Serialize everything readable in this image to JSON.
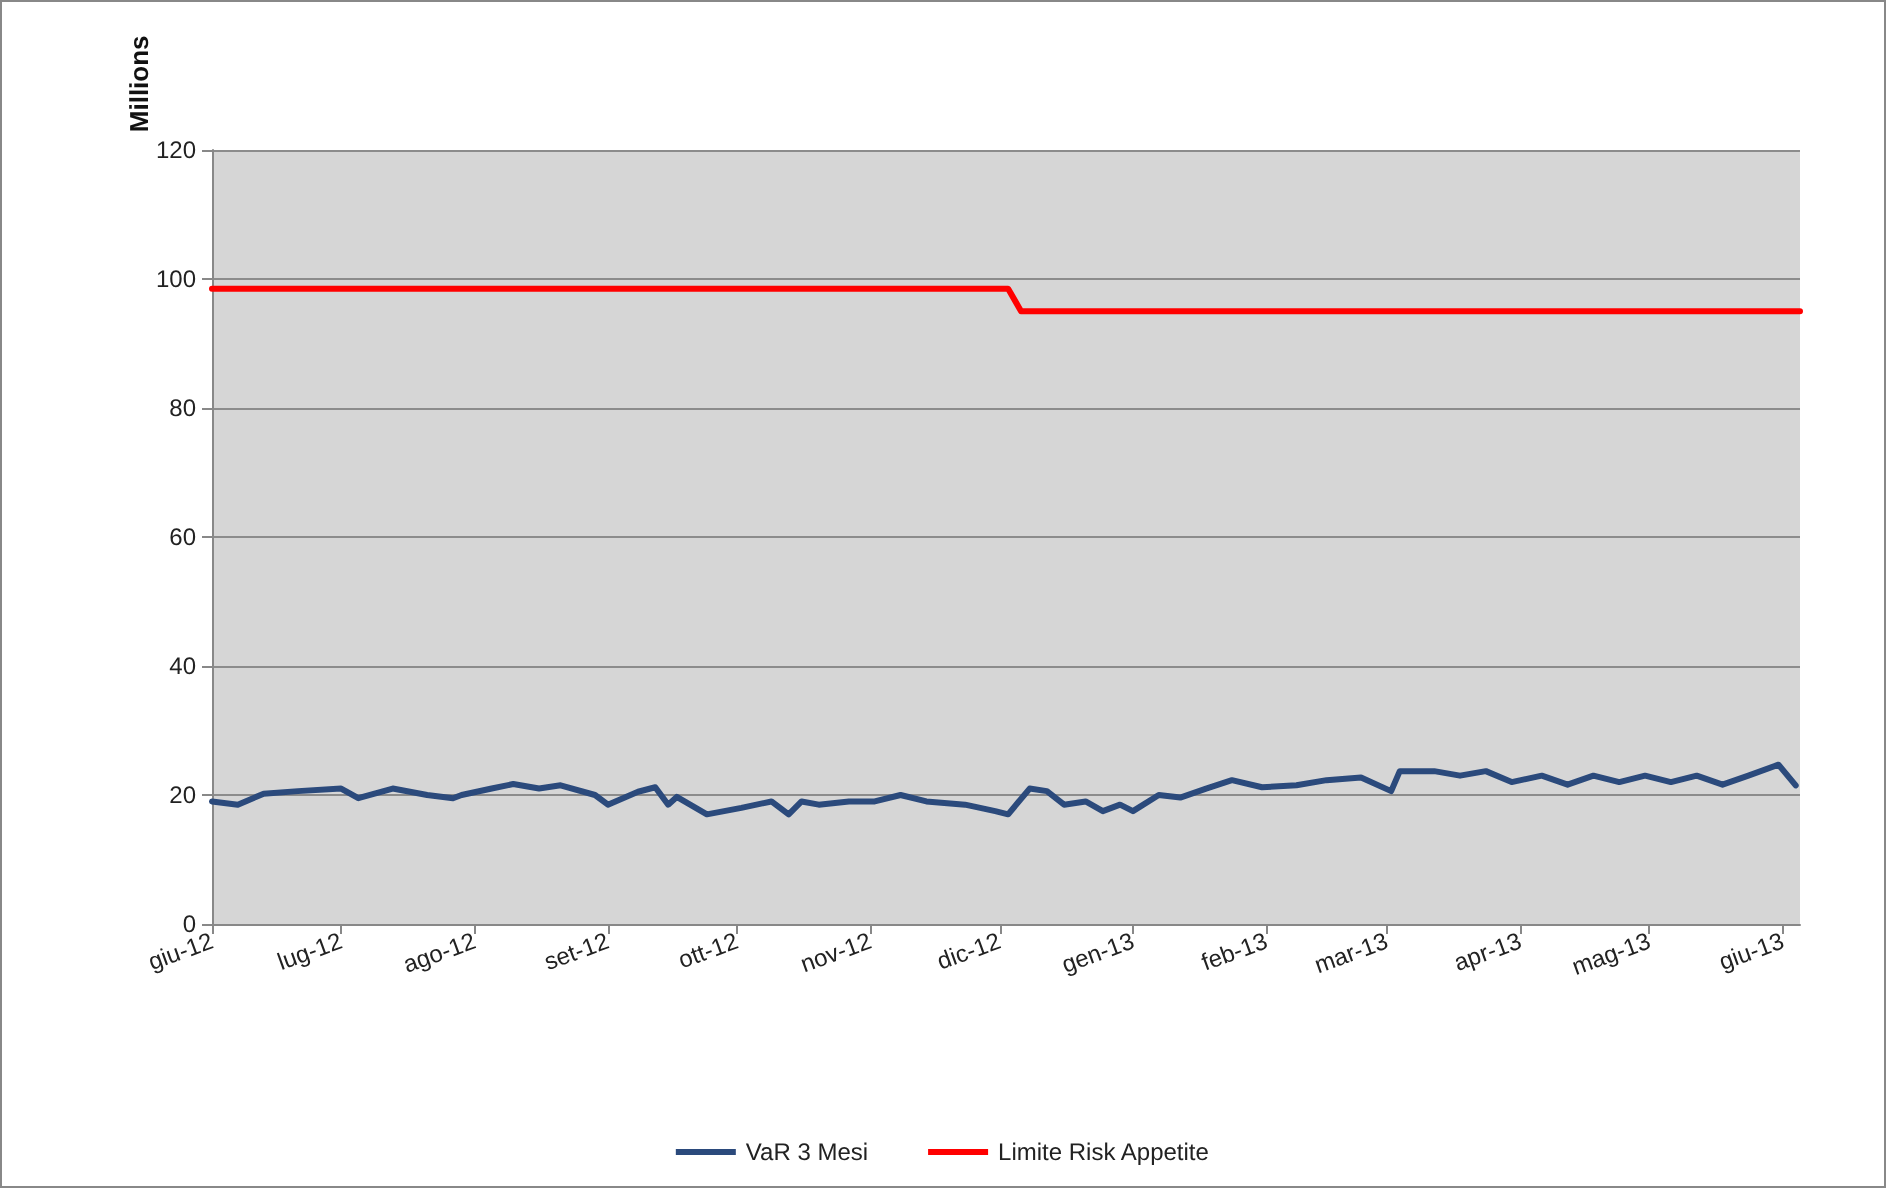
{
  "chart_data": {
    "type": "line",
    "ylabel": "Millions",
    "xlim": [
      "2012-06-01",
      "2013-06-05"
    ],
    "ylim": [
      0,
      120
    ],
    "yticks": [
      0,
      20,
      40,
      60,
      80,
      100,
      120
    ],
    "xticks": [
      {
        "value": "2012-06-01",
        "label": "giu-12"
      },
      {
        "value": "2012-07-01",
        "label": "lug-12"
      },
      {
        "value": "2012-08-01",
        "label": "ago-12"
      },
      {
        "value": "2012-09-01",
        "label": "set-12"
      },
      {
        "value": "2012-10-01",
        "label": "ott-12"
      },
      {
        "value": "2012-11-01",
        "label": "nov-12"
      },
      {
        "value": "2012-12-01",
        "label": "dic-12"
      },
      {
        "value": "2013-01-01",
        "label": "gen-13"
      },
      {
        "value": "2013-02-01",
        "label": "feb-13"
      },
      {
        "value": "2013-03-01",
        "label": "mar-13"
      },
      {
        "value": "2013-04-01",
        "label": "apr-13"
      },
      {
        "value": "2013-05-01",
        "label": "mag-13"
      },
      {
        "value": "2013-06-01",
        "label": "giu-13"
      }
    ],
    "grid": "y",
    "legend": "bottom",
    "marker": "none",
    "line_style": "solid",
    "series": [
      {
        "name": "VaR 3 Mesi",
        "color": "#2b4a7c",
        "x": [
          "2012-06-01",
          "2012-06-07",
          "2012-06-13",
          "2012-06-21",
          "2012-07-01",
          "2012-07-05",
          "2012-07-13",
          "2012-07-21",
          "2012-07-27",
          "2012-07-29",
          "2012-08-05",
          "2012-08-10",
          "2012-08-16",
          "2012-08-21",
          "2012-08-29",
          "2012-09-01",
          "2012-09-08",
          "2012-09-12",
          "2012-09-15",
          "2012-09-17",
          "2012-09-24",
          "2012-10-02",
          "2012-10-09",
          "2012-10-13",
          "2012-10-16",
          "2012-10-20",
          "2012-10-27",
          "2012-11-02",
          "2012-11-08",
          "2012-11-14",
          "2012-11-23",
          "2012-11-30",
          "2012-12-03",
          "2012-12-08",
          "2012-12-12",
          "2012-12-16",
          "2012-12-21",
          "2012-12-25",
          "2012-12-29",
          "2013-01-01",
          "2013-01-07",
          "2013-01-12",
          "2013-01-18",
          "2013-01-24",
          "2013-01-31",
          "2013-02-08",
          "2013-02-15",
          "2013-02-23",
          "2013-03-02",
          "2013-03-04",
          "2013-03-12",
          "2013-03-18",
          "2013-03-24",
          "2013-03-30",
          "2013-04-06",
          "2013-04-12",
          "2013-04-18",
          "2013-04-24",
          "2013-04-30",
          "2013-05-06",
          "2013-05-12",
          "2013-05-18",
          "2013-05-24",
          "2013-05-31",
          "2013-06-04"
        ],
        "values": [
          19,
          18.5,
          20.2,
          20.6,
          21,
          19.5,
          21,
          20,
          19.5,
          20,
          21,
          21.7,
          21,
          21.5,
          20,
          18.5,
          20.5,
          21.2,
          18.5,
          19.7,
          17,
          18,
          19,
          17,
          19,
          18.5,
          19,
          19,
          20,
          19,
          18.5,
          17.5,
          17,
          21,
          20.6,
          18.5,
          19,
          17.5,
          18.5,
          17.5,
          20,
          19.6,
          21,
          22.3,
          21.2,
          21.5,
          22.3,
          22.7,
          20.6,
          23.7,
          23.7,
          23,
          23.7,
          22,
          23,
          21.6,
          23,
          22,
          23,
          22,
          23,
          21.6,
          23,
          24.7,
          21.5
        ]
      },
      {
        "name": "Limite Risk Appetite",
        "color": "#ff0000",
        "x": [
          "2012-06-01",
          "2012-12-03",
          "2012-12-06",
          "2013-06-05"
        ],
        "values": [
          98.5,
          98.5,
          95,
          95
        ]
      }
    ]
  }
}
